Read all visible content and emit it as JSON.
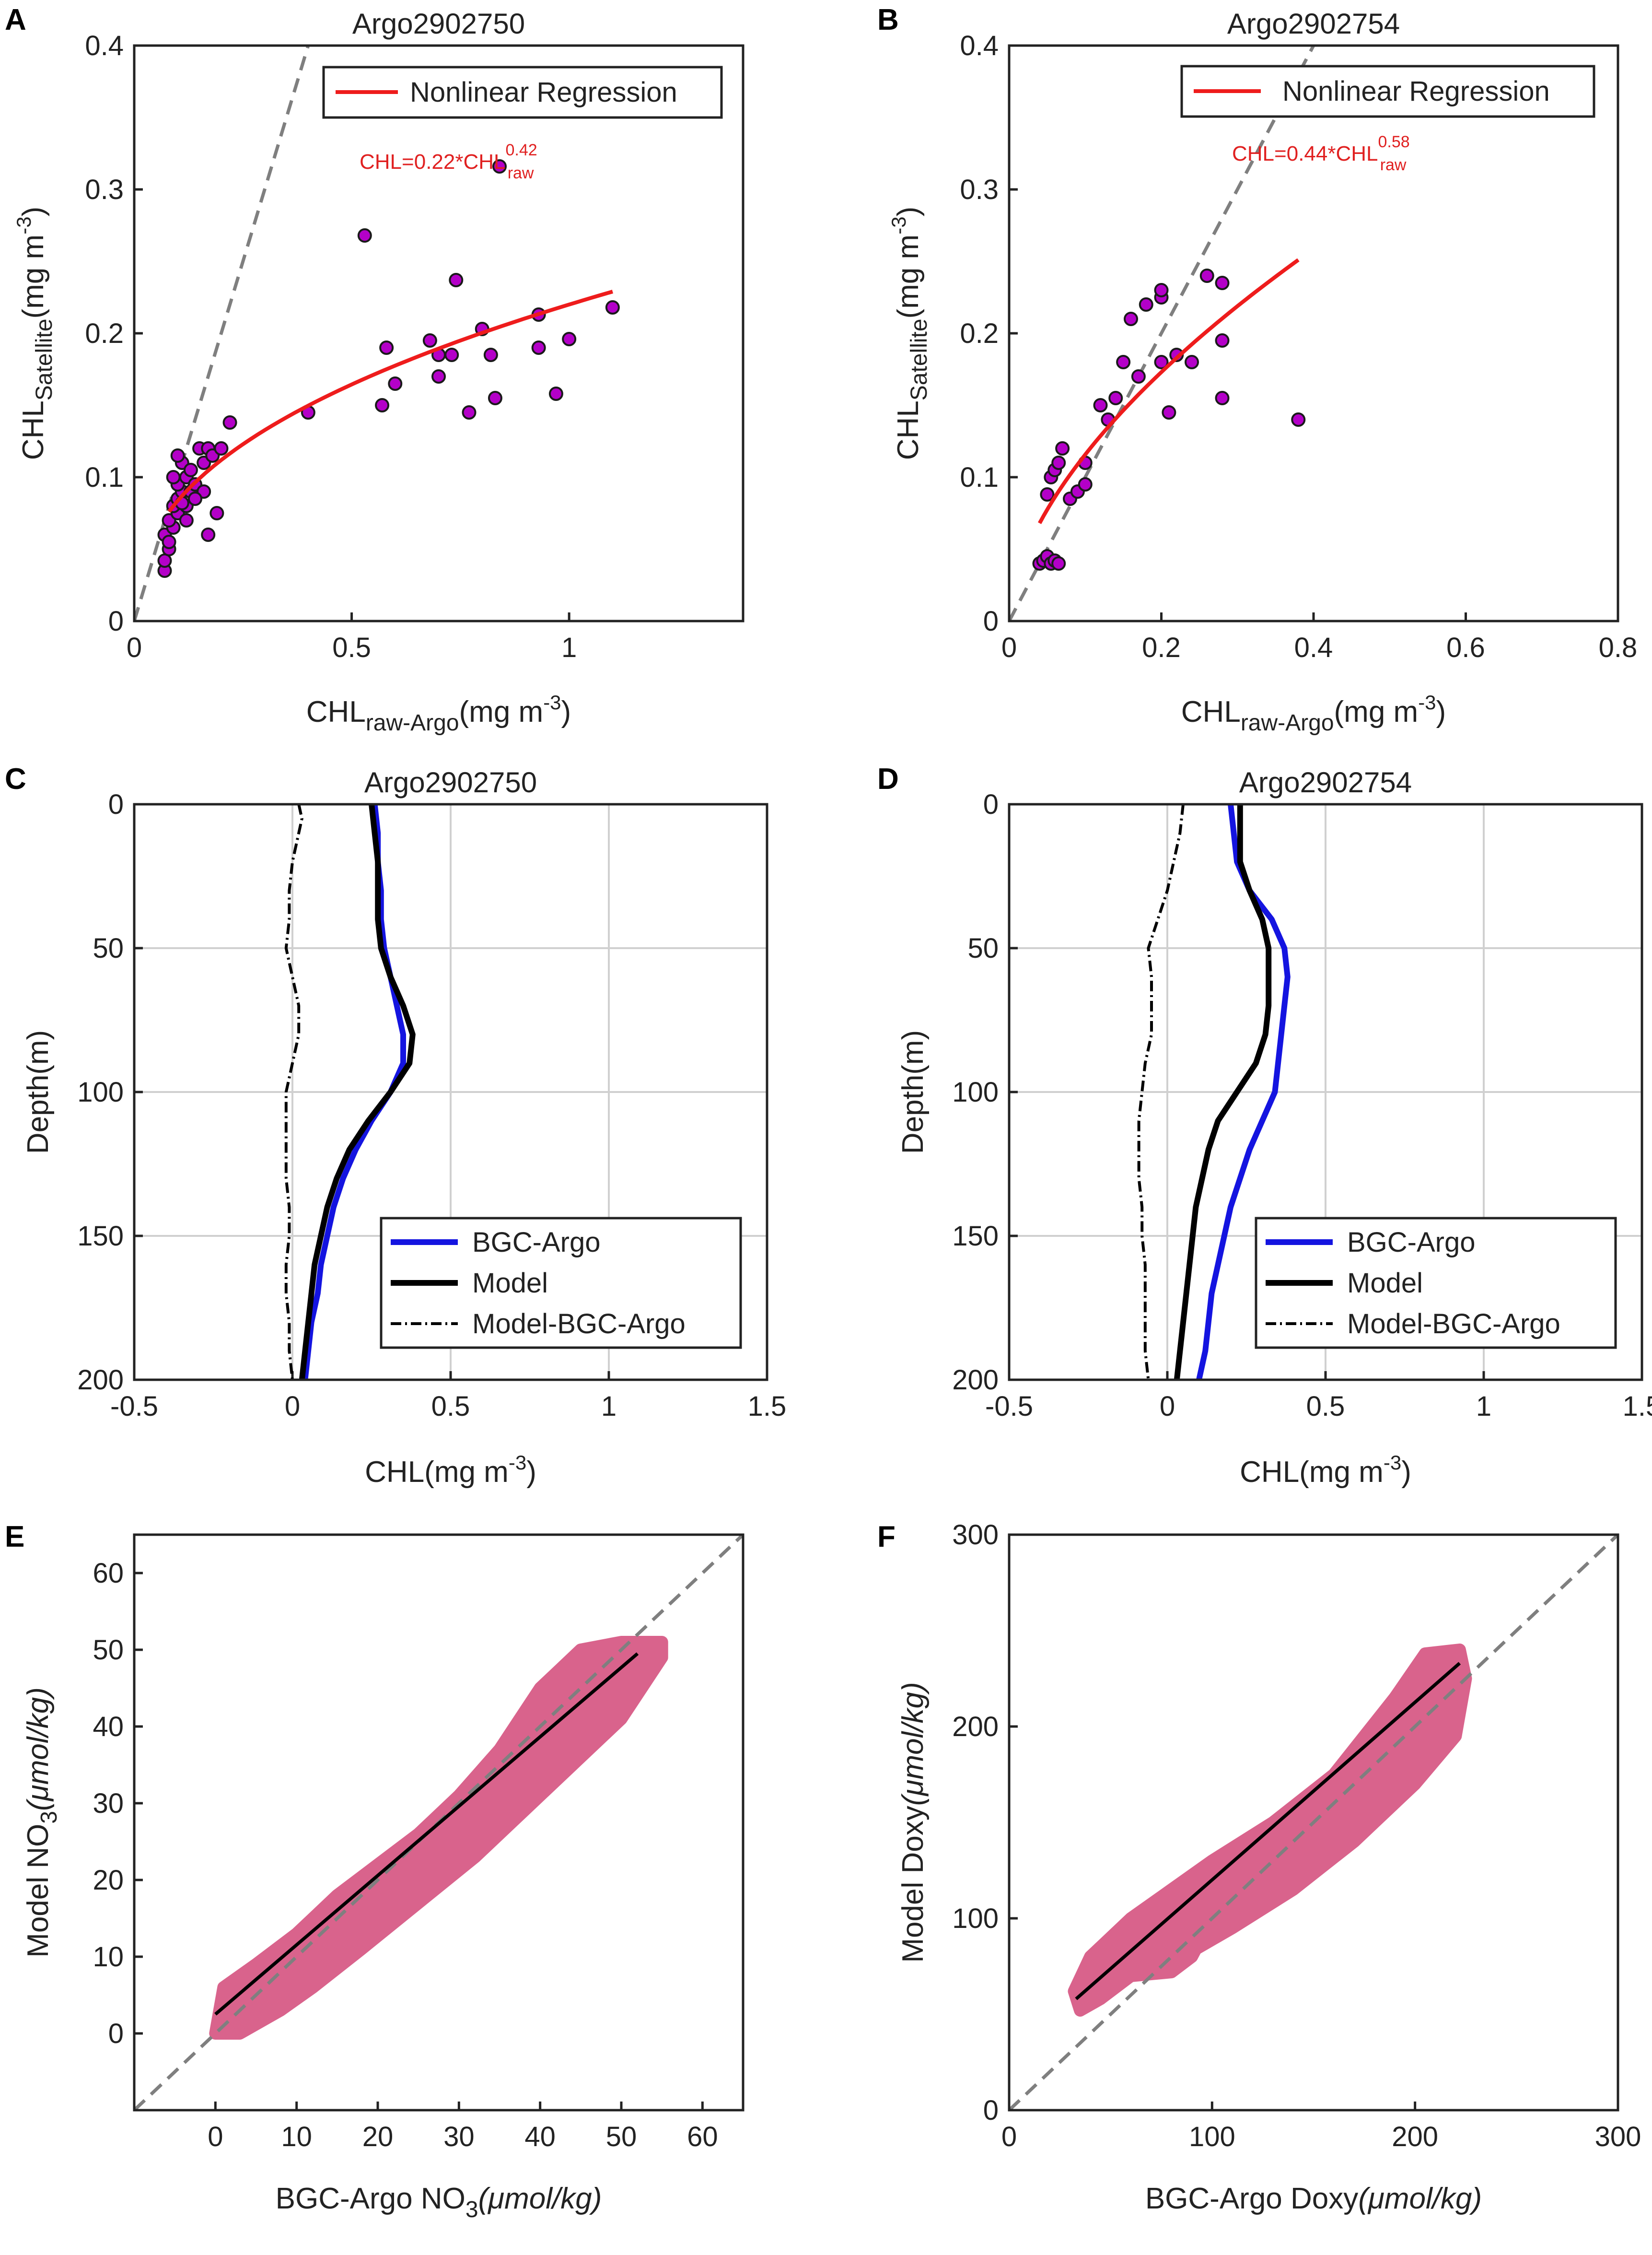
{
  "figure": {
    "colors": {
      "scatter_fill": "#b400c8",
      "regression": "#ee1c1c",
      "bgc_argo": "#1414e0",
      "model": "#000000",
      "identity": "#7f7f7f",
      "cloud": "#d9638c"
    }
  },
  "chart_data": [
    {
      "id": "A",
      "panel_letter": "A",
      "type": "scatter",
      "title": "Argo2902750",
      "xlabel_main": "CHL",
      "xlabel_sub": "raw-Argo",
      "xlabel_unit": "(mg m",
      "xlabel_exp": "-3",
      "xlabel_close": ")",
      "ylabel_main": "CHL",
      "ylabel_sub": "Satellite",
      "ylabel_unit": "(mg m",
      "ylabel_exp": "-3",
      "ylabel_close": ")",
      "xlim": [
        0,
        1.4
      ],
      "ylim": [
        0,
        0.4
      ],
      "xticks": [
        0,
        0.5,
        1
      ],
      "xtick_labels": [
        "0",
        "0.5",
        "1"
      ],
      "yticks": [
        0,
        0.1,
        0.2,
        0.3,
        0.4
      ],
      "ytick_labels": [
        "0",
        "0.1",
        "0.2",
        "0.3",
        "0.4"
      ],
      "legend": [
        "Nonlinear Regression"
      ],
      "equation": {
        "prefix": "CHL=0.22*CHL",
        "exp": "0.42",
        "sub": "raw"
      },
      "fit": {
        "a": 0.22,
        "b": 0.42,
        "x_range": [
          0.08,
          1.1
        ]
      },
      "points": [
        [
          0.07,
          0.035
        ],
        [
          0.07,
          0.042
        ],
        [
          0.08,
          0.05
        ],
        [
          0.07,
          0.06
        ],
        [
          0.08,
          0.055
        ],
        [
          0.09,
          0.065
        ],
        [
          0.08,
          0.07
        ],
        [
          0.1,
          0.075
        ],
        [
          0.09,
          0.08
        ],
        [
          0.1,
          0.085
        ],
        [
          0.11,
          0.09
        ],
        [
          0.1,
          0.095
        ],
        [
          0.12,
          0.1
        ],
        [
          0.09,
          0.1
        ],
        [
          0.11,
          0.11
        ],
        [
          0.1,
          0.115
        ],
        [
          0.13,
          0.09
        ],
        [
          0.12,
          0.08
        ],
        [
          0.14,
          0.095
        ],
        [
          0.15,
          0.12
        ],
        [
          0.16,
          0.11
        ],
        [
          0.17,
          0.12
        ],
        [
          0.16,
          0.09
        ],
        [
          0.18,
          0.115
        ],
        [
          0.19,
          0.075
        ],
        [
          0.17,
          0.06
        ],
        [
          0.2,
          0.12
        ],
        [
          0.22,
          0.138
        ],
        [
          0.14,
          0.085
        ],
        [
          0.13,
          0.105
        ],
        [
          0.12,
          0.07
        ],
        [
          0.11,
          0.082
        ],
        [
          0.4,
          0.145
        ],
        [
          0.53,
          0.268
        ],
        [
          0.57,
          0.15
        ],
        [
          0.58,
          0.19
        ],
        [
          0.6,
          0.165
        ],
        [
          0.68,
          0.195
        ],
        [
          0.7,
          0.185
        ],
        [
          0.7,
          0.17
        ],
        [
          0.73,
          0.185
        ],
        [
          0.74,
          0.237
        ],
        [
          0.77,
          0.145
        ],
        [
          0.8,
          0.203
        ],
        [
          0.82,
          0.185
        ],
        [
          0.83,
          0.155
        ],
        [
          0.84,
          0.316
        ],
        [
          0.93,
          0.19
        ],
        [
          0.93,
          0.213
        ],
        [
          0.97,
          0.158
        ],
        [
          1.0,
          0.196
        ],
        [
          1.1,
          0.218
        ]
      ]
    },
    {
      "id": "B",
      "panel_letter": "B",
      "type": "scatter",
      "title": "Argo2902754",
      "xlabel_main": "CHL",
      "xlabel_sub": "raw-Argo",
      "xlabel_unit": "(mg m",
      "xlabel_exp": "-3",
      "xlabel_close": ")",
      "ylabel_main": "CHL",
      "ylabel_sub": "Satellite",
      "ylabel_unit": "(mg m",
      "ylabel_exp": "-3",
      "ylabel_close": ")",
      "xlim": [
        0,
        0.8
      ],
      "ylim": [
        0,
        0.4
      ],
      "xticks": [
        0,
        0.2,
        0.4,
        0.6,
        0.8
      ],
      "xtick_labels": [
        "0",
        "0.2",
        "0.4",
        "0.6",
        "0.8"
      ],
      "yticks": [
        0,
        0.1,
        0.2,
        0.3,
        0.4
      ],
      "ytick_labels": [
        "0",
        "0.1",
        "0.2",
        "0.3",
        "0.4"
      ],
      "legend": [
        "Nonlinear Regression"
      ],
      "equation": {
        "prefix": "CHL=0.44*CHL",
        "exp": "0.58",
        "sub": "raw"
      },
      "fit": {
        "a": 0.44,
        "b": 0.58,
        "x_range": [
          0.04,
          0.38
        ]
      },
      "points": [
        [
          0.04,
          0.04
        ],
        [
          0.045,
          0.042
        ],
        [
          0.05,
          0.045
        ],
        [
          0.055,
          0.04
        ],
        [
          0.06,
          0.042
        ],
        [
          0.065,
          0.04
        ],
        [
          0.05,
          0.088
        ],
        [
          0.055,
          0.1
        ],
        [
          0.06,
          0.105
        ],
        [
          0.065,
          0.11
        ],
        [
          0.07,
          0.12
        ],
        [
          0.08,
          0.085
        ],
        [
          0.09,
          0.09
        ],
        [
          0.1,
          0.11
        ],
        [
          0.1,
          0.095
        ],
        [
          0.12,
          0.15
        ],
        [
          0.13,
          0.14
        ],
        [
          0.14,
          0.155
        ],
        [
          0.15,
          0.18
        ],
        [
          0.16,
          0.21
        ],
        [
          0.17,
          0.17
        ],
        [
          0.18,
          0.22
        ],
        [
          0.2,
          0.18
        ],
        [
          0.2,
          0.225
        ],
        [
          0.2,
          0.23
        ],
        [
          0.21,
          0.145
        ],
        [
          0.22,
          0.185
        ],
        [
          0.24,
          0.18
        ],
        [
          0.26,
          0.24
        ],
        [
          0.28,
          0.235
        ],
        [
          0.28,
          0.155
        ],
        [
          0.28,
          0.195
        ],
        [
          0.38,
          0.14
        ]
      ]
    },
    {
      "id": "C",
      "panel_letter": "C",
      "type": "line",
      "title": "Argo2902750",
      "xlabel_main": "CHL(mg m",
      "xlabel_exp": "-3",
      "xlabel_close": ")",
      "ylabel": "Depth(m)",
      "xlim": [
        -0.5,
        1.5
      ],
      "ylim": [
        200,
        0
      ],
      "xticks": [
        -0.5,
        0,
        0.5,
        1,
        1.5
      ],
      "xtick_labels": [
        "-0.5",
        "0",
        "0.5",
        "1",
        "1.5"
      ],
      "yticks": [
        0,
        50,
        100,
        150,
        200
      ],
      "ytick_labels": [
        "0",
        "50",
        "100",
        "150",
        "200"
      ],
      "legend": [
        "BGC-Argo",
        "Model",
        "Model-BGC-Argo"
      ],
      "series": [
        {
          "name": "BGC-Argo",
          "depth": [
            0,
            10,
            20,
            30,
            40,
            50,
            60,
            70,
            80,
            90,
            100,
            110,
            120,
            130,
            140,
            150,
            160,
            170,
            180,
            190,
            200
          ],
          "x": [
            0.26,
            0.27,
            0.27,
            0.28,
            0.28,
            0.29,
            0.31,
            0.33,
            0.35,
            0.35,
            0.31,
            0.25,
            0.2,
            0.16,
            0.13,
            0.11,
            0.09,
            0.08,
            0.06,
            0.05,
            0.04
          ]
        },
        {
          "name": "Model",
          "depth": [
            0,
            10,
            20,
            30,
            40,
            50,
            60,
            70,
            80,
            90,
            100,
            110,
            120,
            130,
            140,
            150,
            160,
            170,
            180,
            190,
            200
          ],
          "x": [
            0.25,
            0.26,
            0.27,
            0.27,
            0.27,
            0.28,
            0.31,
            0.35,
            0.38,
            0.37,
            0.31,
            0.24,
            0.18,
            0.14,
            0.11,
            0.09,
            0.07,
            0.06,
            0.05,
            0.04,
            0.03
          ]
        },
        {
          "name": "Model-BGC-Argo",
          "depth": [
            0,
            5,
            10,
            20,
            30,
            40,
            50,
            60,
            70,
            80,
            90,
            100,
            110,
            120,
            130,
            140,
            150,
            160,
            170,
            180,
            190,
            200
          ],
          "x": [
            0.02,
            0.03,
            0.02,
            0.0,
            -0.01,
            -0.01,
            -0.02,
            0.0,
            0.02,
            0.02,
            0.0,
            -0.02,
            -0.02,
            -0.02,
            -0.02,
            -0.01,
            -0.01,
            -0.02,
            -0.02,
            -0.01,
            -0.01,
            0.0
          ]
        }
      ]
    },
    {
      "id": "D",
      "panel_letter": "D",
      "type": "line",
      "title": "Argo2902754",
      "xlabel_main": "CHL(mg m",
      "xlabel_exp": "-3",
      "xlabel_close": ")",
      "ylabel": "Depth(m)",
      "xlim": [
        -0.5,
        1.5
      ],
      "ylim": [
        200,
        0
      ],
      "xticks": [
        -0.5,
        0,
        0.5,
        1,
        1.5
      ],
      "xtick_labels": [
        "-0.5",
        "0",
        "0.5",
        "1",
        "1.5"
      ],
      "yticks": [
        0,
        50,
        100,
        150,
        200
      ],
      "ytick_labels": [
        "0",
        "50",
        "100",
        "150",
        "200"
      ],
      "legend": [
        "BGC-Argo",
        "Model",
        "Model-BGC-Argo"
      ],
      "series": [
        {
          "name": "BGC-Argo",
          "depth": [
            0,
            10,
            20,
            30,
            40,
            50,
            60,
            70,
            80,
            90,
            100,
            110,
            120,
            130,
            140,
            150,
            160,
            170,
            180,
            190,
            200
          ],
          "x": [
            0.2,
            0.21,
            0.22,
            0.26,
            0.33,
            0.37,
            0.38,
            0.37,
            0.36,
            0.35,
            0.34,
            0.3,
            0.26,
            0.23,
            0.2,
            0.18,
            0.16,
            0.14,
            0.13,
            0.12,
            0.1
          ]
        },
        {
          "name": "Model",
          "depth": [
            0,
            10,
            20,
            30,
            40,
            50,
            60,
            70,
            80,
            90,
            100,
            110,
            120,
            130,
            140,
            150,
            160,
            170,
            180,
            190,
            200
          ],
          "x": [
            0.23,
            0.23,
            0.23,
            0.26,
            0.3,
            0.32,
            0.32,
            0.32,
            0.31,
            0.28,
            0.22,
            0.16,
            0.13,
            0.11,
            0.09,
            0.08,
            0.07,
            0.06,
            0.05,
            0.04,
            0.03
          ]
        },
        {
          "name": "Model-BGC-Argo",
          "depth": [
            0,
            10,
            20,
            30,
            40,
            50,
            60,
            70,
            80,
            90,
            100,
            110,
            120,
            130,
            140,
            150,
            160,
            170,
            180,
            190,
            200
          ],
          "x": [
            0.05,
            0.04,
            0.02,
            0.0,
            -0.03,
            -0.06,
            -0.05,
            -0.05,
            -0.05,
            -0.07,
            -0.08,
            -0.09,
            -0.09,
            -0.09,
            -0.08,
            -0.08,
            -0.07,
            -0.07,
            -0.07,
            -0.07,
            -0.06
          ]
        }
      ]
    },
    {
      "id": "E",
      "panel_letter": "E",
      "type": "scatter",
      "title": "",
      "xlabel_main": "BGC-Argo NO",
      "xlabel_sub": "3",
      "xlabel_mu": "(μmol/kg)",
      "ylabel_main": "Model NO",
      "ylabel_sub": "3",
      "ylabel_mu": "(μmol/kg)",
      "xlim": [
        -10,
        65
      ],
      "ylim": [
        -10,
        65
      ],
      "xticks": [
        0,
        10,
        20,
        30,
        40,
        50,
        60
      ],
      "xtick_labels": [
        "0",
        "10",
        "20",
        "30",
        "40",
        "50",
        "60"
      ],
      "yticks": [
        0,
        10,
        20,
        30,
        40,
        50,
        60
      ],
      "ytick_labels": [
        "0",
        "10",
        "20",
        "30",
        "40",
        "50",
        "60"
      ],
      "fit_line": {
        "x": [
          0,
          52
        ],
        "y": [
          2.5,
          49.5
        ]
      },
      "cloud": [
        [
          0,
          0
        ],
        [
          3,
          0
        ],
        [
          8,
          3
        ],
        [
          12,
          6
        ],
        [
          18,
          11
        ],
        [
          25,
          17
        ],
        [
          32,
          23
        ],
        [
          38,
          29
        ],
        [
          44,
          35
        ],
        [
          50,
          41
        ],
        [
          55,
          49
        ],
        [
          55,
          51
        ],
        [
          50,
          51
        ],
        [
          45,
          50
        ],
        [
          40,
          45
        ],
        [
          35,
          37
        ],
        [
          30,
          31
        ],
        [
          25,
          26
        ],
        [
          20,
          22
        ],
        [
          15,
          18
        ],
        [
          10,
          13
        ],
        [
          5,
          9
        ],
        [
          1,
          6
        ]
      ]
    },
    {
      "id": "F",
      "panel_letter": "F",
      "type": "scatter",
      "title": "",
      "xlabel_main": "BGC-Argo Doxy",
      "xlabel_mu": "(μmol/kg)",
      "ylabel_main": "Model Doxy",
      "ylabel_mu": "(μmol/kg)",
      "xlim": [
        0,
        300
      ],
      "ylim": [
        0,
        300
      ],
      "xticks": [
        0,
        100,
        200,
        300
      ],
      "xtick_labels": [
        "0",
        "100",
        "200",
        "300"
      ],
      "yticks": [
        0,
        100,
        200,
        300
      ],
      "ytick_labels": [
        "0",
        "100",
        "200",
        "300"
      ],
      "fit_line": {
        "x": [
          33,
          222
        ],
        "y": [
          58,
          233
        ]
      },
      "cloud": [
        [
          35,
          52
        ],
        [
          45,
          58
        ],
        [
          60,
          70
        ],
        [
          80,
          72
        ],
        [
          90,
          80
        ],
        [
          92,
          84
        ],
        [
          110,
          95
        ],
        [
          140,
          115
        ],
        [
          170,
          140
        ],
        [
          200,
          170
        ],
        [
          220,
          195
        ],
        [
          225,
          225
        ],
        [
          222,
          240
        ],
        [
          205,
          238
        ],
        [
          190,
          215
        ],
        [
          160,
          175
        ],
        [
          130,
          150
        ],
        [
          100,
          130
        ],
        [
          80,
          115
        ],
        [
          60,
          100
        ],
        [
          40,
          80
        ],
        [
          32,
          62
        ]
      ]
    }
  ]
}
